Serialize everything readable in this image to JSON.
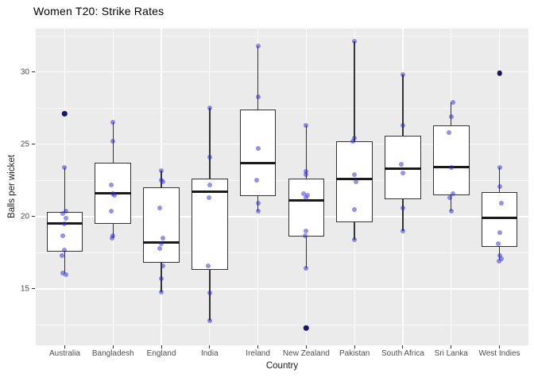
{
  "title": "Women T20: Strike Rates",
  "colors": {
    "panel_bg": "#EBEBEB",
    "grid": "#FFFFFF",
    "box_border": "#333333",
    "box_fill": "#FFFFFF",
    "median": "#1A1A1A",
    "jitter_point": "rgba(40,40,215,0.5)",
    "outlier_point": "#16166A",
    "tick_label": "#4D4D4D",
    "title_text": "#000000"
  },
  "chart_data": {
    "type": "boxplot",
    "title": "Women T20: Strike Rates",
    "xlabel": "Country",
    "ylabel": "Balls per wicket",
    "ylim": [
      11.1,
      33.0
    ],
    "y_ticks": [
      15,
      20,
      25,
      30
    ],
    "y_minor_gridlines": [
      12.5,
      17.5,
      22.5,
      27.5,
      32.5
    ],
    "grid": true,
    "legend": false,
    "categories": [
      "Australia",
      "Bangladesh",
      "England",
      "India",
      "Ireland",
      "New Zealand",
      "Pakistan",
      "South Africa",
      "Sri Lanka",
      "West Indies"
    ],
    "series": [
      {
        "name": "Australia",
        "whisker_low": 16.1,
        "q1": 17.6,
        "median": 19.5,
        "q3": 20.3,
        "whisker_high": 23.4,
        "outliers": [
          27.1
        ],
        "points": [
          [
            23.4,
            0
          ],
          [
            20.4,
            2
          ],
          [
            20.2,
            -2
          ],
          [
            19.9,
            2
          ],
          [
            19.5,
            0
          ],
          [
            18.7,
            -2
          ],
          [
            17.7,
            0
          ],
          [
            17.3,
            -3
          ],
          [
            16.1,
            -2
          ],
          [
            16.0,
            2
          ]
        ]
      },
      {
        "name": "Bangladesh",
        "whisker_low": 18.5,
        "q1": 19.5,
        "median": 21.6,
        "q3": 23.7,
        "whisker_high": 26.5,
        "outliers": [],
        "points": [
          [
            26.5,
            0
          ],
          [
            25.2,
            0
          ],
          [
            22.2,
            -2
          ],
          [
            21.6,
            0
          ],
          [
            21.5,
            2
          ],
          [
            20.4,
            -2
          ],
          [
            18.7,
            0
          ],
          [
            18.5,
            -1
          ]
        ]
      },
      {
        "name": "England",
        "whisker_low": 14.8,
        "q1": 16.8,
        "median": 18.2,
        "q3": 22.0,
        "whisker_high": 23.2,
        "outliers": [],
        "points": [
          [
            23.2,
            0
          ],
          [
            22.5,
            0
          ],
          [
            22.4,
            2
          ],
          [
            20.6,
            -2
          ],
          [
            18.5,
            2
          ],
          [
            18.1,
            0
          ],
          [
            17.8,
            -2
          ],
          [
            16.6,
            2
          ],
          [
            15.7,
            0
          ],
          [
            14.8,
            0
          ]
        ]
      },
      {
        "name": "India",
        "whisker_low": 12.8,
        "q1": 16.3,
        "median": 21.7,
        "q3": 22.6,
        "whisker_high": 27.5,
        "outliers": [],
        "points": [
          [
            27.5,
            0
          ],
          [
            24.1,
            0
          ],
          [
            22.2,
            0
          ],
          [
            21.3,
            -1
          ],
          [
            16.6,
            -2
          ],
          [
            14.7,
            0
          ],
          [
            12.8,
            0
          ]
        ]
      },
      {
        "name": "Ireland",
        "whisker_low": 20.4,
        "q1": 21.4,
        "median": 23.7,
        "q3": 27.4,
        "whisker_high": 31.8,
        "outliers": [],
        "points": [
          [
            31.8,
            0
          ],
          [
            28.3,
            0
          ],
          [
            24.7,
            0
          ],
          [
            22.5,
            -2
          ],
          [
            20.9,
            0
          ],
          [
            20.4,
            0
          ]
        ]
      },
      {
        "name": "New Zealand",
        "whisker_low": 16.4,
        "q1": 18.6,
        "median": 21.1,
        "q3": 22.6,
        "whisker_high": 26.3,
        "outliers": [
          12.3
        ],
        "points": [
          [
            26.3,
            0
          ],
          [
            23.1,
            0
          ],
          [
            22.9,
            0
          ],
          [
            21.6,
            -3
          ],
          [
            21.5,
            2
          ],
          [
            21.3,
            0
          ],
          [
            19.0,
            0
          ],
          [
            18.7,
            -1
          ],
          [
            16.4,
            0
          ]
        ]
      },
      {
        "name": "Pakistan",
        "whisker_low": 18.4,
        "q1": 19.6,
        "median": 22.6,
        "q3": 25.2,
        "whisker_high": 32.1,
        "outliers": [],
        "points": [
          [
            32.1,
            0
          ],
          [
            25.4,
            0
          ],
          [
            25.2,
            -2
          ],
          [
            22.9,
            0
          ],
          [
            22.4,
            2
          ],
          [
            20.5,
            0
          ],
          [
            18.4,
            0
          ]
        ]
      },
      {
        "name": "South Africa",
        "whisker_low": 19.0,
        "q1": 21.2,
        "median": 23.3,
        "q3": 25.6,
        "whisker_high": 29.8,
        "outliers": [],
        "points": [
          [
            29.8,
            0
          ],
          [
            26.3,
            0
          ],
          [
            23.6,
            -2
          ],
          [
            23.0,
            0
          ],
          [
            20.6,
            0
          ],
          [
            19.0,
            0
          ]
        ]
      },
      {
        "name": "Sri Lanka",
        "whisker_low": 20.4,
        "q1": 21.5,
        "median": 23.4,
        "q3": 26.3,
        "whisker_high": 27.9,
        "outliers": [],
        "points": [
          [
            27.9,
            2
          ],
          [
            26.9,
            0
          ],
          [
            25.8,
            -3
          ],
          [
            23.4,
            0
          ],
          [
            21.6,
            2
          ],
          [
            21.3,
            -2
          ],
          [
            20.4,
            0
          ]
        ]
      },
      {
        "name": "West Indies",
        "whisker_low": 17.0,
        "q1": 17.9,
        "median": 19.9,
        "q3": 21.7,
        "whisker_high": 23.4,
        "outliers": [
          29.9
        ],
        "points": [
          [
            23.4,
            0
          ],
          [
            22.1,
            0
          ],
          [
            20.9,
            2
          ],
          [
            18.9,
            0
          ],
          [
            18.1,
            -2
          ],
          [
            17.3,
            0
          ],
          [
            17.1,
            2
          ],
          [
            16.9,
            -1
          ]
        ]
      }
    ]
  }
}
